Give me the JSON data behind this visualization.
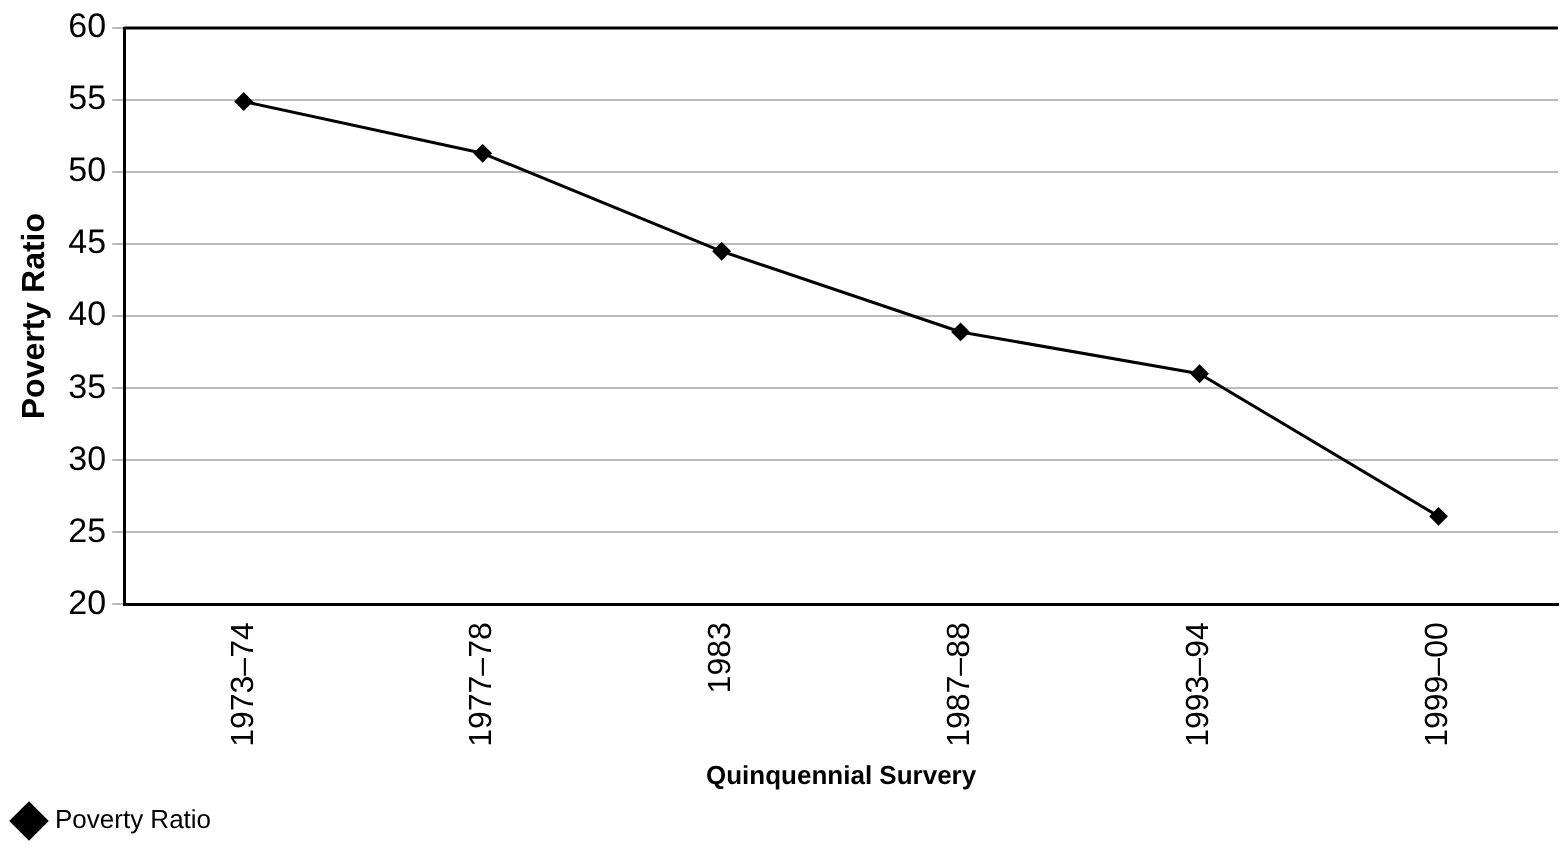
{
  "chart_data": {
    "type": "line",
    "xlabel": "Quinquennial Survery",
    "ylabel": "Poverty Ratio",
    "categories": [
      "1973–74",
      "1977–78",
      "1983",
      "1987–88",
      "1993–94",
      "1999–00"
    ],
    "series": [
      {
        "name": "Poverty Ratio",
        "color": "#000000",
        "values": [
          54.9,
          51.3,
          44.5,
          38.9,
          36.0,
          26.1
        ]
      }
    ],
    "ylim": [
      20,
      60
    ],
    "yticks": [
      20,
      25,
      30,
      35,
      40,
      45,
      50,
      55,
      60
    ],
    "grid": "y",
    "legend": "bottom left",
    "marker": "diamond",
    "line_style": "solid"
  }
}
